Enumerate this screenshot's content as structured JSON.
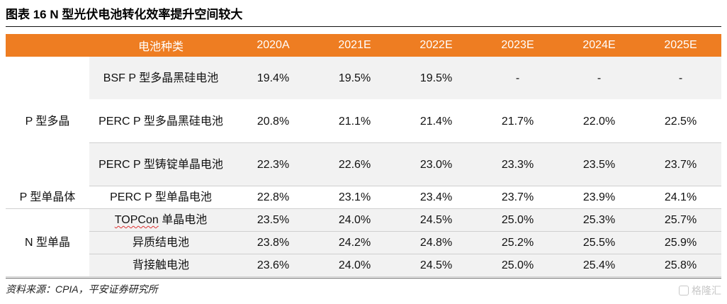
{
  "title": "图表 16   N 型光伏电池转化效率提升空间较大",
  "header": {
    "category": "电池种类",
    "years": [
      "2020A",
      "2021E",
      "2022E",
      "2023E",
      "2024E",
      "2025E"
    ]
  },
  "groups": [
    {
      "name": "P 型多晶",
      "rows": [
        {
          "label": "BSF P 型多晶黑硅电池",
          "values": [
            "19.4%",
            "19.5%",
            "19.5%",
            "-",
            "-",
            "-"
          ]
        },
        {
          "label": "PERC P 型多晶黑硅电池",
          "values": [
            "20.8%",
            "21.1%",
            "21.4%",
            "21.7%",
            "22.0%",
            "22.5%"
          ]
        },
        {
          "label": "PERC P  型铸锭单晶电池",
          "values": [
            "22.3%",
            "22.6%",
            "23.0%",
            "23.3%",
            "23.5%",
            "23.7%"
          ]
        }
      ]
    },
    {
      "name": "P 型单晶体",
      "rows": [
        {
          "label": "PERC P 型单晶电池",
          "values": [
            "22.8%",
            "23.1%",
            "23.4%",
            "23.7%",
            "23.9%",
            "24.1%"
          ]
        }
      ]
    },
    {
      "name": "N 型单晶",
      "rows": [
        {
          "label_prefix": "TOPCon",
          "label_suffix": " 单晶电池",
          "values": [
            "23.5%",
            "24.0%",
            "24.5%",
            "25.0%",
            "25.3%",
            "25.7%"
          ]
        },
        {
          "label": "异质结电池",
          "values": [
            "23.8%",
            "24.2%",
            "24.8%",
            "25.2%",
            "25.5%",
            "25.9%"
          ]
        },
        {
          "label": "背接触电池",
          "values": [
            "23.6%",
            "24.0%",
            "24.5%",
            "25.0%",
            "25.4%",
            "25.8%"
          ]
        }
      ]
    }
  ],
  "source": "资料来源：CPIA，平安证券研究所",
  "watermark": {
    "text": "格隆汇",
    "icon": "gelonghui-logo-icon"
  }
}
